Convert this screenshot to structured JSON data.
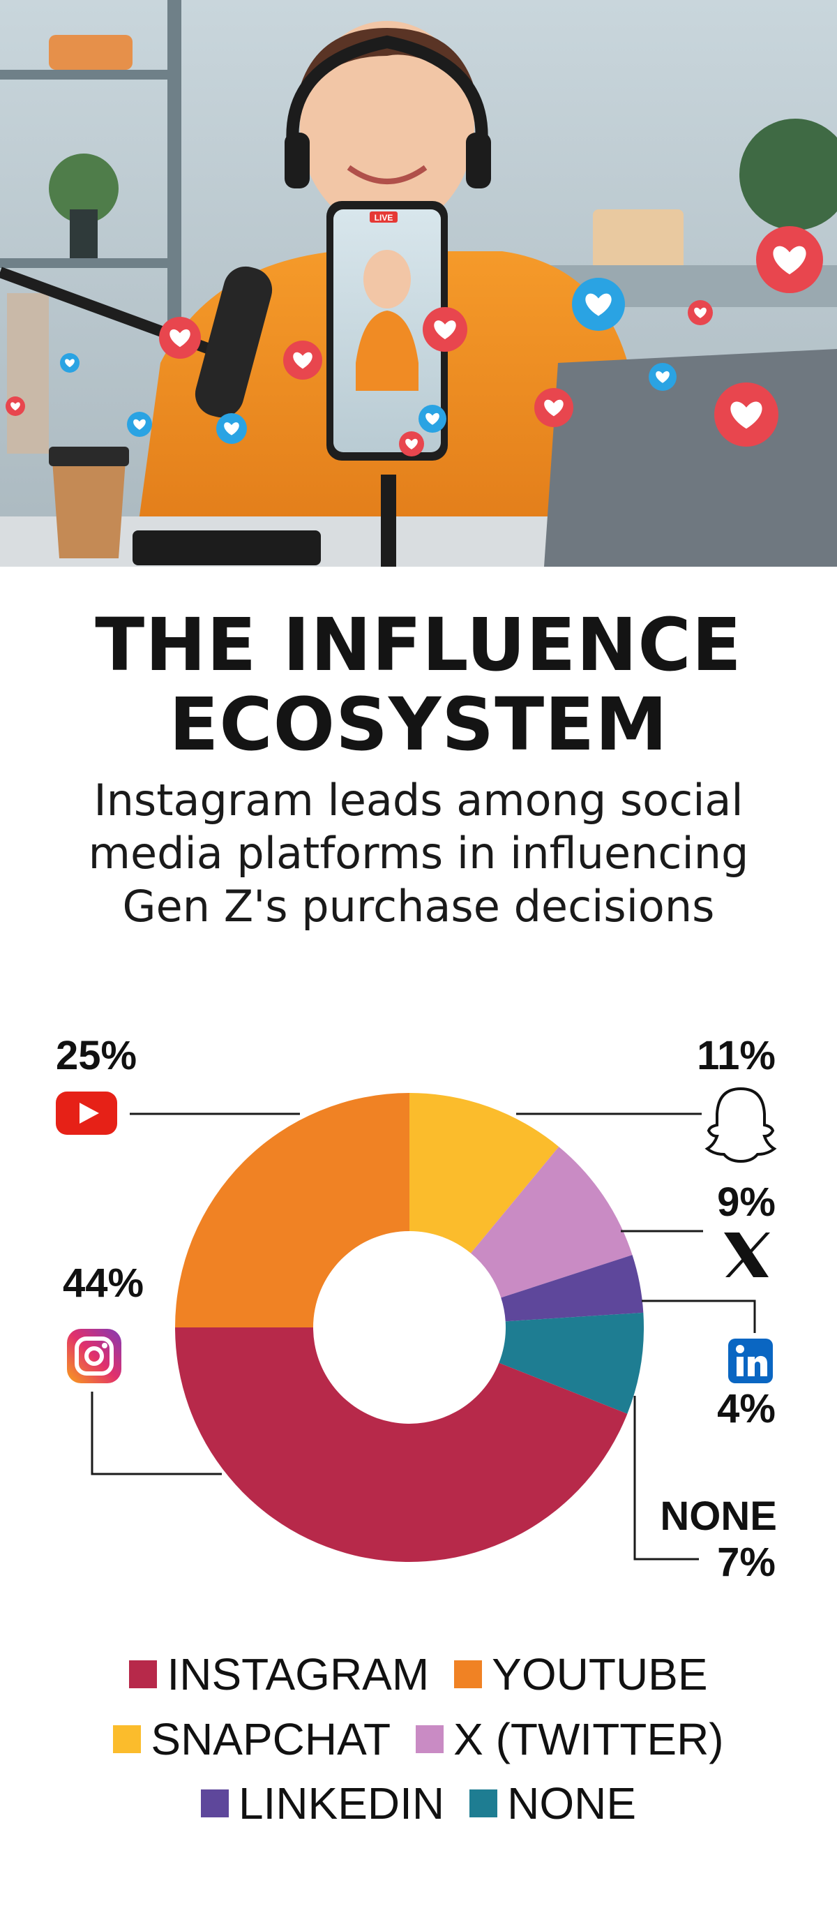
{
  "title_line1": "THE INFLUENCE",
  "title_line2": "ECOSYSTEM",
  "subtitle_line1": "Instagram leads among social",
  "subtitle_line2": "media platforms in influencing",
  "subtitle_line3": "Gen Z's purchase decisions",
  "phone_live_badge": "LIVE",
  "chart_data": {
    "type": "pie",
    "variant": "donut",
    "series": [
      {
        "name": "INSTAGRAM",
        "value": 44,
        "label": "44%",
        "color": "#b7294a",
        "icon": "instagram-icon"
      },
      {
        "name": "YOUTUBE",
        "value": 25,
        "label": "25%",
        "color": "#f08224",
        "icon": "youtube-icon"
      },
      {
        "name": "SNAPCHAT",
        "value": 11,
        "label": "11%",
        "color": "#fbbc2c",
        "icon": "snapchat-icon"
      },
      {
        "name": "X (TWITTER)",
        "value": 9,
        "label": "9%",
        "color": "#c98bc4",
        "icon": "x-icon"
      },
      {
        "name": "LINKEDIN",
        "value": 4,
        "label": "4%",
        "color": "#5e479b",
        "icon": "linkedin-icon"
      },
      {
        "name": "NONE",
        "value": 7,
        "label": "7%",
        "extra_label": "NONE",
        "color": "#1e7d92",
        "icon": ""
      }
    ],
    "legend_position": "bottom"
  }
}
